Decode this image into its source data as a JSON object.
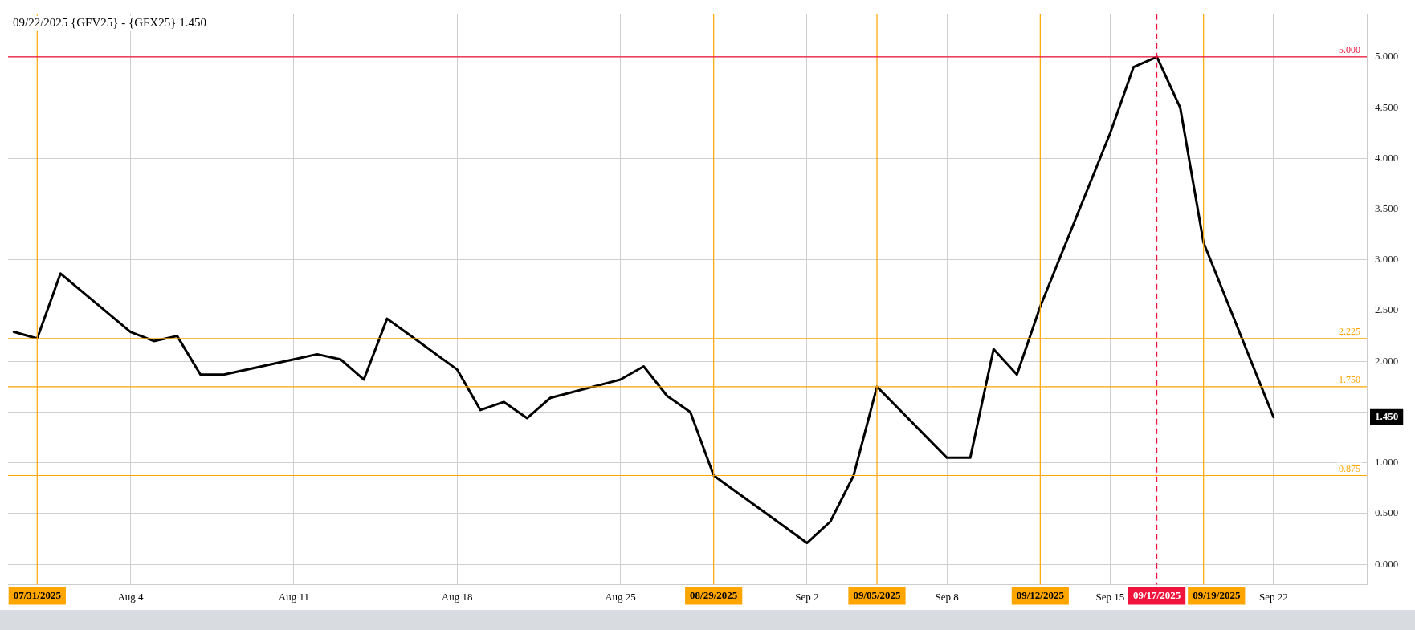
{
  "chart_data": {
    "type": "line",
    "title": "09/22/2025 {GFV25} - {GFX25} 1.450",
    "x": [
      "2025-07-30",
      "2025-07-31",
      "2025-08-01",
      "2025-08-04",
      "2025-08-05",
      "2025-08-06",
      "2025-08-07",
      "2025-08-08",
      "2025-08-11",
      "2025-08-12",
      "2025-08-13",
      "2025-08-14",
      "2025-08-15",
      "2025-08-18",
      "2025-08-19",
      "2025-08-20",
      "2025-08-21",
      "2025-08-22",
      "2025-08-25",
      "2025-08-26",
      "2025-08-27",
      "2025-08-28",
      "2025-08-29",
      "2025-09-02",
      "2025-09-03",
      "2025-09-04",
      "2025-09-05",
      "2025-09-08",
      "2025-09-09",
      "2025-09-10",
      "2025-09-11",
      "2025-09-12",
      "2025-09-15",
      "2025-09-16",
      "2025-09-17",
      "2025-09-18",
      "2025-09-19",
      "2025-09-22"
    ],
    "series": [
      {
        "color": "#000000",
        "values": [
          2.29,
          2.225,
          2.865,
          2.29,
          2.2,
          2.25,
          1.87,
          1.87,
          2.02,
          2.07,
          2.02,
          1.82,
          2.42,
          1.92,
          1.52,
          1.6,
          1.44,
          1.64,
          1.82,
          1.95,
          1.66,
          1.5,
          0.875,
          0.21,
          0.42,
          0.875,
          1.75,
          1.05,
          1.05,
          2.12,
          1.87,
          2.54,
          4.25,
          4.9,
          5.0,
          4.5,
          3.17,
          1.45
        ]
      }
    ],
    "xticks": [
      {
        "value": "2025-08-04",
        "label": "Aug 4"
      },
      {
        "value": "2025-08-11",
        "label": "Aug 11"
      },
      {
        "value": "2025-08-18",
        "label": "Aug 18"
      },
      {
        "value": "2025-08-25",
        "label": "Aug 25"
      },
      {
        "value": "2025-09-02",
        "label": "Sep 2"
      },
      {
        "value": "2025-09-08",
        "label": "Sep 8"
      },
      {
        "value": "2025-09-15",
        "label": "Sep 15"
      },
      {
        "value": "2025-09-22",
        "label": "Sep 22"
      }
    ],
    "xlim": [
      "2025-07-29T18:00",
      "2025-09-26"
    ],
    "ylim": [
      -0.2,
      5.42
    ],
    "yticks": [
      {
        "value": 0,
        "label": "0.000"
      },
      {
        "value": 0.5,
        "label": "0.500"
      },
      {
        "value": 1,
        "label": "1.000"
      },
      {
        "value": 1.5,
        "label": null
      },
      {
        "value": 2,
        "label": "2.000"
      },
      {
        "value": 2.5,
        "label": "2.500"
      },
      {
        "value": 3,
        "label": "3.000"
      },
      {
        "value": 3.5,
        "label": "3.500"
      },
      {
        "value": 4,
        "label": "4.000"
      },
      {
        "value": 4.5,
        "label": "4.500"
      },
      {
        "value": 5,
        "label": "5.000"
      }
    ],
    "ref_lines": [
      {
        "axis": "x",
        "value": "2025-07-31",
        "label": "07/31/2025",
        "color": "#ffa500",
        "line_style": "solid"
      },
      {
        "axis": "x",
        "value": "2025-08-29",
        "label": "08/29/2025",
        "color": "#ffa500",
        "line_style": "solid"
      },
      {
        "axis": "x",
        "value": "2025-09-05",
        "label": "09/05/2025",
        "color": "#ffa500",
        "line_style": "solid"
      },
      {
        "axis": "x",
        "value": "2025-09-12",
        "label": "09/12/2025",
        "color": "#ffa500",
        "line_style": "solid"
      },
      {
        "axis": "x",
        "value": "2025-09-17",
        "label": "09/17/2025",
        "color": "#f0143c",
        "line_style": "dashed"
      },
      {
        "axis": "x",
        "value": "2025-09-19",
        "label": "09/19/2025",
        "color": "#ffa500",
        "line_style": "solid"
      },
      {
        "axis": "y",
        "value": 2.225,
        "label": "2.225",
        "color": "#ffa500",
        "line_style": "solid"
      },
      {
        "axis": "y",
        "value": 1.75,
        "label": "1.750",
        "color": "#ffa500",
        "line_style": "solid"
      },
      {
        "axis": "y",
        "value": 0.875,
        "label": "0.875",
        "color": "#ffa500",
        "line_style": "solid"
      },
      {
        "axis": "y",
        "value": 5.0,
        "label": "5.000",
        "color": "#f0143c",
        "line_style": "solid"
      }
    ],
    "annotations": [
      "1.450"
    ],
    "grid": true,
    "legend": false,
    "marker": "none",
    "line_style": "solid"
  }
}
